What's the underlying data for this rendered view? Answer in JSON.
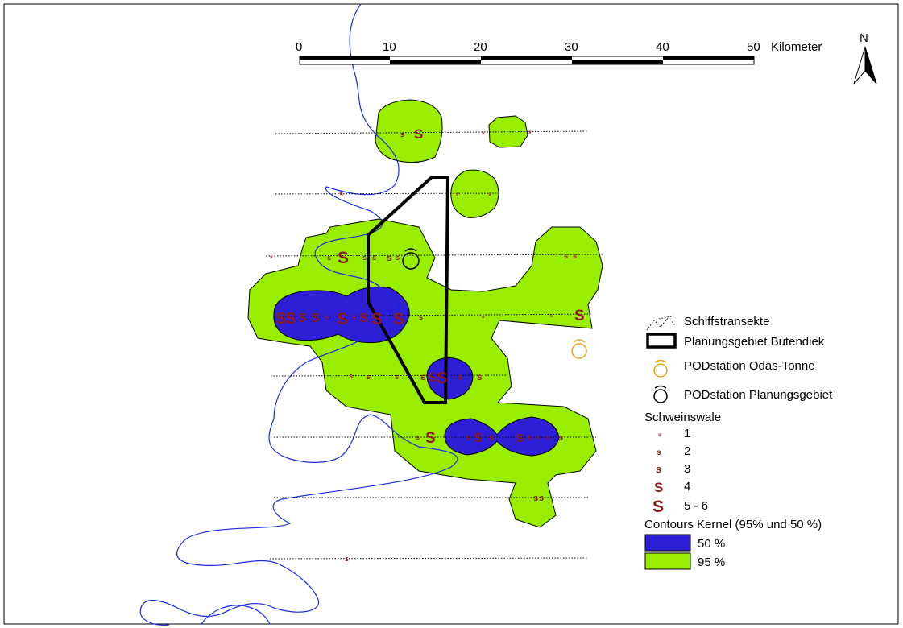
{
  "scale_bar": {
    "ticks": [
      "0",
      "10",
      "20",
      "30",
      "40",
      "50"
    ],
    "unit": "Kilometer"
  },
  "north_arrow": {
    "label": "N"
  },
  "legend": {
    "transects_label": "Schiffstransekte",
    "area_label": "Planungsgebiet Butendiek",
    "pod_odas_label": "PODstation Odas-Tonne",
    "pod_plan_label": "PODstation Planungsgebiet",
    "porpoise_title": "Schweinswale",
    "porpoise_classes": [
      "1",
      "2",
      "3",
      "4",
      "5 - 6"
    ],
    "kernel_title": "Contours Kernel (95% und 50 %)",
    "kernel_classes": [
      "50 %",
      "95 %"
    ]
  },
  "colors": {
    "kernel_50": "#2d1fd6",
    "kernel_95": "#99ee00",
    "coastline": "#1a2be0",
    "porpoise": "#8b1a1a",
    "pod_odas": "#f0a020",
    "pod_plan": "#000000",
    "area_outline": "#000000"
  },
  "symbol_glyph": "S"
}
